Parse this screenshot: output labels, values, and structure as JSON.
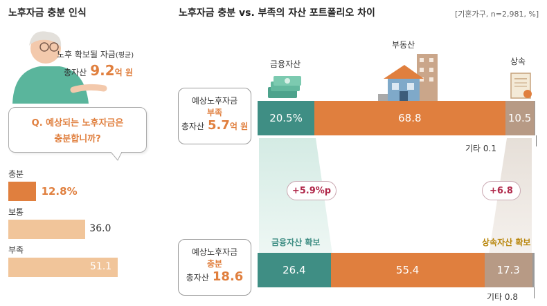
{
  "left": {
    "title": "노후자금 충분 인식",
    "avg_label": "노후 확보될 자금",
    "avg_label_sub": "(평균)",
    "total_prefix": "총자산",
    "total_value": "9.2",
    "total_unit": "억 원",
    "question_line1": "Q. 예상되는 노후자금은",
    "question_line2": "충분합니까?"
  },
  "right": {
    "title": "노후자금 충분 vs. 부족의 자산 포트폴리오 차이",
    "note": "[기혼가구, n=2,981, %]",
    "cat_labels": {
      "financial": "금융자산",
      "realestate": "부동산",
      "inherit": "상속"
    },
    "insufficient": {
      "line1": "예상노후자금",
      "line2": "부족",
      "total_prefix": "총자산",
      "total_value": "5.7",
      "total_unit": "억 원"
    },
    "sufficient": {
      "line1": "예상노후자금",
      "line2": "충분",
      "total_prefix": "총자산",
      "total_value": "18.6"
    },
    "diff_financial": "+5.9%p",
    "diff_inherit": "+6.8",
    "secure_financial": "금융자산 확보",
    "secure_inherit": "상속자산 확보"
  },
  "chart_data": [
    {
      "type": "bar",
      "orientation": "horizontal",
      "categories": [
        "충분",
        "보통",
        "부족"
      ],
      "values": [
        12.8,
        36.0,
        51.1
      ],
      "value_labels": [
        "12.8%",
        "36.0",
        "51.1"
      ],
      "colors": [
        "#e07f3e",
        "#f1c59a",
        "#f1c59a"
      ]
    },
    {
      "type": "bar",
      "stacked": true,
      "orientation": "horizontal",
      "categories": [
        "예상노후자금 부족",
        "예상노후자금 충분"
      ],
      "series": [
        {
          "name": "금융자산",
          "values": [
            20.5,
            26.4
          ],
          "labels": [
            "20.5%",
            "26.4"
          ],
          "color": "#3f8e84"
        },
        {
          "name": "부동산",
          "values": [
            68.8,
            55.4
          ],
          "labels": [
            "68.8",
            "55.4"
          ],
          "color": "#e07f3e"
        },
        {
          "name": "상속",
          "values": [
            10.5,
            17.3
          ],
          "labels": [
            "10.5",
            "17.3"
          ],
          "color": "#b79a85"
        },
        {
          "name": "기타",
          "values": [
            0.1,
            0.8
          ],
          "labels": [
            "기타 0.1",
            "기타 0.8"
          ],
          "color": "#9a9a9a"
        }
      ]
    }
  ]
}
